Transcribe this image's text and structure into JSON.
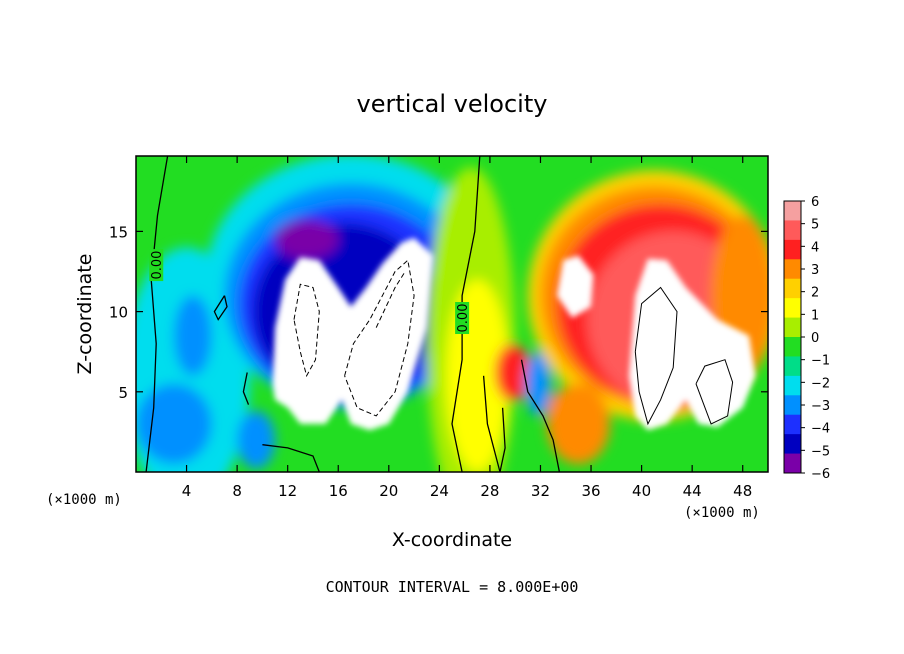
{
  "chart_data": {
    "type": "heatmap",
    "title": "vertical velocity",
    "xlabel": "X-coordinate",
    "ylabel": "Z-coordinate",
    "x_unit_note": "(×1000 m)",
    "z_unit_note": "(×1000 m)",
    "footer": "CONTOUR INTERVAL = 8.000E+00",
    "xlim": [
      0,
      50
    ],
    "ylim": [
      0,
      19.7
    ],
    "x_ticks": [
      4,
      8,
      12,
      16,
      20,
      24,
      28,
      32,
      36,
      40,
      44,
      48
    ],
    "y_ticks": [
      5,
      10,
      15
    ],
    "colorbar": {
      "range": [
        -6,
        6
      ],
      "ticks": [
        6,
        5,
        4,
        3,
        2,
        1,
        0,
        -1,
        -2,
        -3,
        -4,
        -5,
        -6
      ],
      "tick_labels": [
        "6",
        "5",
        "4",
        "3",
        "2",
        "1",
        "0",
        "−1",
        "−2",
        "−3",
        "−4",
        "−5",
        "−6"
      ],
      "colors": [
        "#f5a0a0",
        "#ff5a5a",
        "#ff2020",
        "#ff8a00",
        "#ffd000",
        "#ffff00",
        "#a8ee00",
        "#22dd22",
        "#00dd88",
        "#00ddee",
        "#0090ff",
        "#1d30ff",
        "#0000c0",
        "#7a00a8"
      ]
    },
    "contour_labels": [
      {
        "text": "0.00",
        "x": 1.6,
        "z": 12.9
      },
      {
        "text": "0.00",
        "x": 25.8,
        "z": 9.6
      }
    ],
    "features": [
      {
        "kind": "downdraft_core",
        "x_range": [
          10.5,
          23.5
        ],
        "z_range": [
          2.5,
          14.5
        ],
        "min_value": -6
      },
      {
        "kind": "updraft_core",
        "x_range": [
          39,
          49
        ],
        "z_range": [
          2.5,
          13.5
        ],
        "max_value": 6
      },
      {
        "kind": "updraft_core",
        "x_range": [
          33,
          36.5
        ],
        "z_range": [
          9.5,
          13.5
        ],
        "max_value": 6
      }
    ]
  }
}
